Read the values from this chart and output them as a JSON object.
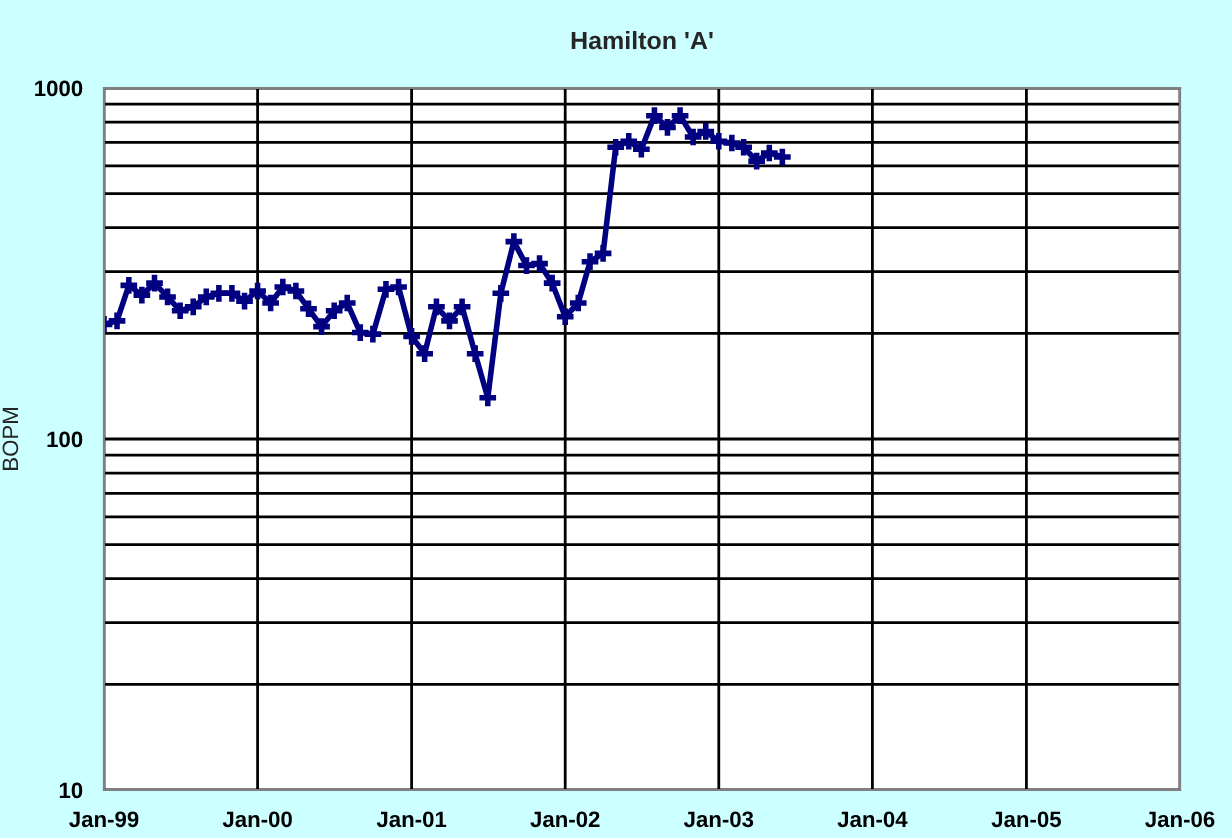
{
  "chart_data": {
    "type": "line",
    "title": "Hamilton 'A'",
    "ylabel": "BOPM",
    "x": [
      "1999-01",
      "1999-02",
      "1999-03",
      "1999-04",
      "1999-05",
      "1999-06",
      "1999-07",
      "1999-08",
      "1999-09",
      "1999-10",
      "1999-11",
      "1999-12",
      "2000-01",
      "2000-02",
      "2000-03",
      "2000-04",
      "2000-05",
      "2000-06",
      "2000-07",
      "2000-08",
      "2000-09",
      "2000-10",
      "2000-11",
      "2000-12",
      "2001-01",
      "2001-02",
      "2001-03",
      "2001-04",
      "2001-05",
      "2001-06",
      "2001-07",
      "2001-08",
      "2001-09",
      "2001-10",
      "2001-11",
      "2001-12",
      "2002-01",
      "2002-02",
      "2002-03",
      "2002-04",
      "2002-05",
      "2002-06",
      "2002-07",
      "2002-08",
      "2002-09",
      "2002-10",
      "2002-11",
      "2002-12",
      "2003-01",
      "2003-02",
      "2003-03",
      "2003-04",
      "2003-05",
      "2003-06"
    ],
    "series": [
      {
        "color": "#000080",
        "values": [
          212,
          217,
          274,
          257,
          278,
          254,
          232,
          238,
          254,
          260,
          260,
          247,
          264,
          244,
          271,
          264,
          235,
          209,
          232,
          244,
          201,
          199,
          267,
          271,
          196,
          175,
          238,
          217,
          238,
          175,
          131,
          260,
          365,
          312,
          316,
          278,
          223,
          244,
          320,
          338,
          678,
          705,
          669,
          834,
          772,
          834,
          725,
          752,
          705,
          697,
          678,
          619,
          653,
          636
        ]
      }
    ],
    "log": "y",
    "ylim": [
      10,
      1000
    ],
    "yticks": [
      10,
      {
        "value": 20,
        "label": null
      },
      {
        "value": 30,
        "label": null
      },
      {
        "value": 40,
        "label": null
      },
      {
        "value": 50,
        "label": null
      },
      {
        "value": 60,
        "label": null
      },
      {
        "value": 70,
        "label": null
      },
      {
        "value": 80,
        "label": null
      },
      {
        "value": 90,
        "label": null
      },
      100,
      {
        "value": 200,
        "label": null
      },
      {
        "value": 300,
        "label": null
      },
      {
        "value": 400,
        "label": null
      },
      {
        "value": 500,
        "label": null
      },
      {
        "value": 600,
        "label": null
      },
      {
        "value": 700,
        "label": null
      },
      {
        "value": 800,
        "label": null
      },
      {
        "value": 900,
        "label": null
      },
      1000
    ],
    "xlim": [
      "1999-01-01",
      "2006-01-01"
    ],
    "xticks": [
      {
        "value": "1999-01-01",
        "label": "Jan-99"
      },
      {
        "value": "2000-01-01",
        "label": "Jan-00"
      },
      {
        "value": "2001-01-01",
        "label": "Jan-01"
      },
      {
        "value": "2002-01-01",
        "label": "Jan-02"
      },
      {
        "value": "2003-01-01",
        "label": "Jan-03"
      },
      {
        "value": "2004-01-01",
        "label": "Jan-04"
      },
      {
        "value": "2005-01-01",
        "label": "Jan-05"
      },
      {
        "value": "2006-01-01",
        "label": "Jan-06"
      }
    ],
    "grid": true,
    "marker": "cross",
    "line_style": "solid",
    "legend": false
  }
}
